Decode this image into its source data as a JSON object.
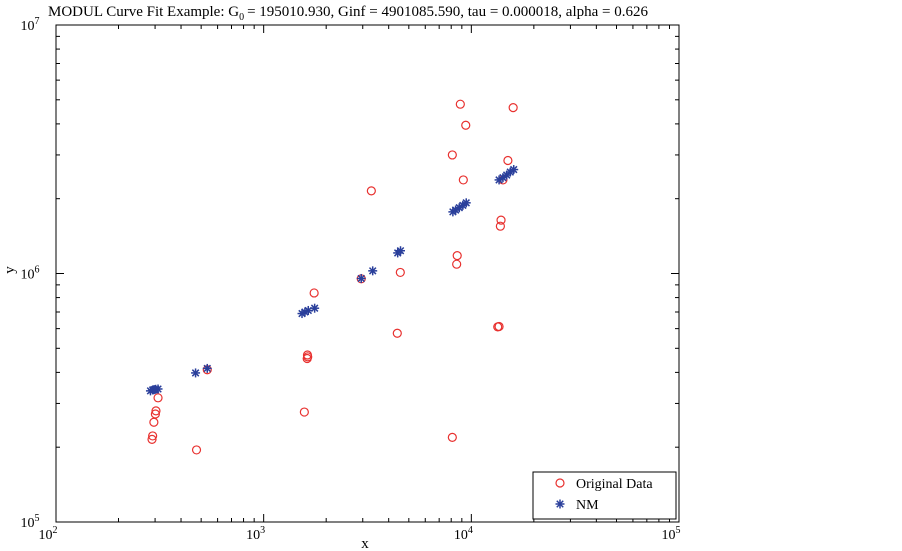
{
  "chart_data": {
    "type": "scatter",
    "title": "MODUL Curve Fit Example: G",
    "title_sub": "0",
    "title_rest": "= 195010.930, Ginf = 4901085.590, tau = 0.000018, alpha = 0.626",
    "xlabel": "x",
    "ylabel": "y",
    "x_scale": "log",
    "y_scale": "log",
    "xlim": [
      100,
      100000
    ],
    "ylim": [
      100000,
      10000000
    ],
    "grid": false,
    "legend_position": "bottom-right",
    "x_ticks": [
      {
        "value": 100,
        "base": "10",
        "exp": "2"
      },
      {
        "value": 1000,
        "base": "10",
        "exp": "3"
      },
      {
        "value": 10000,
        "base": "10",
        "exp": "4"
      },
      {
        "value": 100000,
        "base": "10",
        "exp": "5"
      }
    ],
    "y_ticks": [
      {
        "value": 100000,
        "base": "10",
        "exp": "5"
      },
      {
        "value": 1000000,
        "base": "10",
        "exp": "6"
      },
      {
        "value": 10000000,
        "base": "10",
        "exp": "7"
      }
    ],
    "series": [
      {
        "name": "Original Data",
        "marker": "circle",
        "color": "#e8312f",
        "points": [
          [
            290,
            215000
          ],
          [
            292,
            222000
          ],
          [
            296,
            252000
          ],
          [
            301,
            272000
          ],
          [
            303,
            280000
          ],
          [
            310,
            316000
          ],
          [
            475,
            195000
          ],
          [
            535,
            410000
          ],
          [
            1570,
            277000
          ],
          [
            1620,
            455000
          ],
          [
            1630,
            462000
          ],
          [
            1625,
            470000
          ],
          [
            1750,
            835000
          ],
          [
            2950,
            952000
          ],
          [
            3300,
            2150000
          ],
          [
            4400,
            575000
          ],
          [
            4550,
            1010000
          ],
          [
            8100,
            219000
          ],
          [
            8100,
            3000000
          ],
          [
            8500,
            1090000
          ],
          [
            8550,
            1180000
          ],
          [
            8850,
            4800000
          ],
          [
            9150,
            2380000
          ],
          [
            9400,
            3950000
          ],
          [
            13400,
            610000
          ],
          [
            13600,
            612000
          ],
          [
            13800,
            1550000
          ],
          [
            13900,
            1640000
          ],
          [
            14200,
            2380000
          ],
          [
            15000,
            2850000
          ],
          [
            15900,
            4650000
          ]
        ]
      },
      {
        "name": "NM",
        "marker": "asterisk",
        "color": "#2a3f9b",
        "points": [
          [
            285,
            337000
          ],
          [
            292,
            340000
          ],
          [
            297,
            341000
          ],
          [
            302,
            342000
          ],
          [
            310,
            343000
          ],
          [
            470,
            398000
          ],
          [
            535,
            415000
          ],
          [
            1530,
            690000
          ],
          [
            1580,
            700000
          ],
          [
            1640,
            710000
          ],
          [
            1760,
            725000
          ],
          [
            2950,
            955000
          ],
          [
            3350,
            1025000
          ],
          [
            4420,
            1210000
          ],
          [
            4560,
            1235000
          ],
          [
            8150,
            1770000
          ],
          [
            8400,
            1800000
          ],
          [
            8750,
            1840000
          ],
          [
            9100,
            1880000
          ],
          [
            9450,
            1925000
          ],
          [
            13600,
            2380000
          ],
          [
            14200,
            2430000
          ],
          [
            14800,
            2490000
          ],
          [
            15400,
            2560000
          ],
          [
            16000,
            2620000
          ]
        ]
      }
    ]
  }
}
